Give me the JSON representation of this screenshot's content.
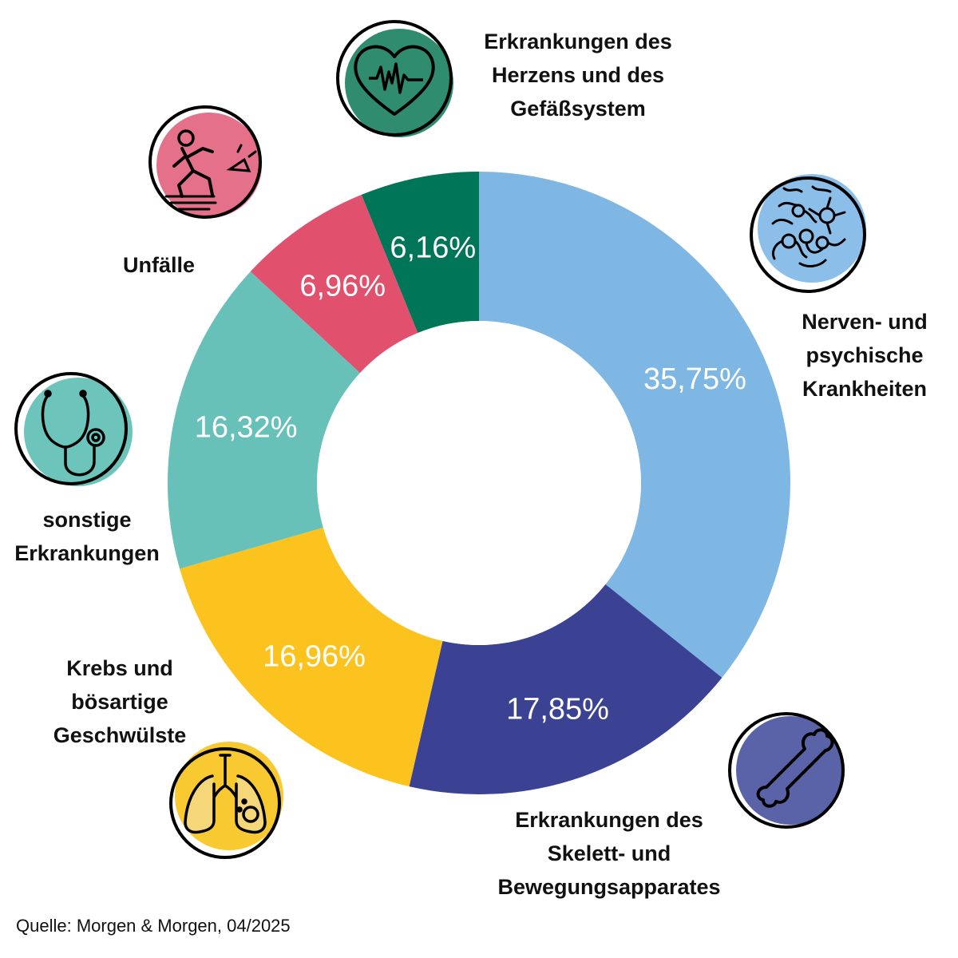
{
  "chart_data": {
    "type": "pie",
    "style": "donut",
    "categories": [
      {
        "label": "Nerven- und\npsychische\nKrankheiten",
        "value": 35.75,
        "display": "35,75%",
        "color": "#7EB6E4",
        "icon": "neurons-icon"
      },
      {
        "label": "Erkrankungen des\nSkelett- und\nBewegungsapparates",
        "value": 17.85,
        "display": "17,85%",
        "color": "#3B4294",
        "icon": "bone-icon"
      },
      {
        "label": "Krebs und\nbösartige\nGeschwülste",
        "value": 16.96,
        "display": "16,96%",
        "color": "#FCC31E",
        "icon": "lungs-tumor-icon"
      },
      {
        "label": "sonstige\nErkrankungen",
        "value": 16.32,
        "display": "16,32%",
        "color": "#67C1B8",
        "icon": "stethoscope-icon"
      },
      {
        "label": "Unfälle",
        "value": 6.96,
        "display": "6,96%",
        "color": "#E1516E",
        "icon": "slip-fall-icon"
      },
      {
        "label": "Erkrankungen des\nHerzens und des\nGefäßsystem",
        "value": 6.16,
        "display": "6,16%",
        "color": "#007558",
        "icon": "heart-pulse-icon"
      }
    ],
    "legend": "none",
    "source": "Quelle: Morgen & Morgen, 04/2025"
  }
}
